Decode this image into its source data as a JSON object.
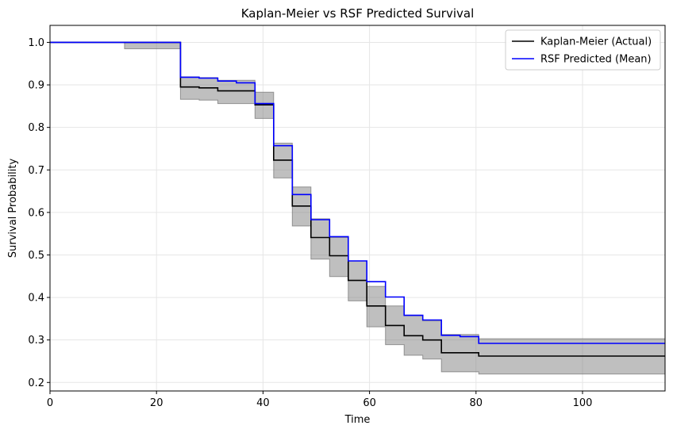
{
  "chart_data": {
    "type": "line",
    "title": "Kaplan-Meier vs RSF Predicted Survival",
    "xlabel": "Time",
    "ylabel": "Survival Probability",
    "xlim": [
      0,
      115.5
    ],
    "ylim": [
      0.18,
      1.04
    ],
    "xticks": [
      0,
      20,
      40,
      60,
      80,
      100
    ],
    "yticks": [
      0.2,
      0.3,
      0.4,
      0.5,
      0.6,
      0.7,
      0.8,
      0.9,
      1.0
    ],
    "grid": true,
    "legend_position": "top-right",
    "series": [
      {
        "name": "Kaplan-Meier (Actual)",
        "color": "#000000",
        "step": "post",
        "x": [
          0,
          24.5,
          28,
          31.5,
          38.5,
          42,
          45.5,
          49,
          52.5,
          56,
          59.5,
          63,
          66.5,
          70,
          73.5,
          80.5,
          115.5
        ],
        "y": [
          1.0,
          0.895,
          0.893,
          0.886,
          0.853,
          0.723,
          0.615,
          0.541,
          0.498,
          0.44,
          0.38,
          0.334,
          0.31,
          0.3,
          0.27,
          0.262,
          0.262
        ]
      },
      {
        "name": "RSF Predicted (Mean)",
        "color": "#0000ff",
        "step": "post",
        "x": [
          0,
          24.5,
          28,
          31.5,
          35,
          38.5,
          42,
          45.5,
          49,
          52.5,
          56,
          59.5,
          63,
          66.5,
          70,
          73.5,
          77,
          80.5,
          115.5
        ],
        "y": [
          1.0,
          0.918,
          0.916,
          0.909,
          0.905,
          0.856,
          0.757,
          0.642,
          0.583,
          0.543,
          0.486,
          0.437,
          0.401,
          0.358,
          0.347,
          0.311,
          0.308,
          0.292,
          0.292
        ]
      }
    ],
    "confidence_band": {
      "color": "#808080",
      "x": [
        0,
        14,
        24.5,
        28,
        31.5,
        38.5,
        42,
        45.5,
        49,
        52.5,
        56,
        59.5,
        63,
        66.5,
        70,
        73.5,
        80.5,
        115.5
      ],
      "lower": [
        1.0,
        0.985,
        0.866,
        0.864,
        0.856,
        0.821,
        0.681,
        0.568,
        0.49,
        0.449,
        0.392,
        0.331,
        0.289,
        0.264,
        0.255,
        0.225,
        0.22,
        0.22
      ],
      "upper": [
        1.0,
        1.0,
        0.919,
        0.917,
        0.911,
        0.883,
        0.763,
        0.66,
        0.585,
        0.541,
        0.486,
        0.426,
        0.38,
        0.357,
        0.345,
        0.313,
        0.303,
        0.303
      ]
    }
  }
}
